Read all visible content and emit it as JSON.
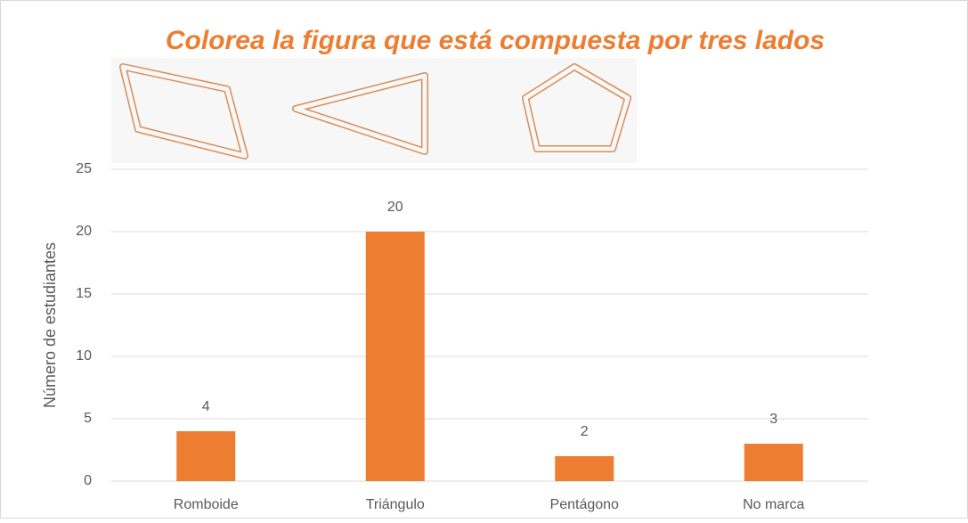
{
  "chart_data": {
    "type": "bar",
    "title": "Colorea la figura que está compuesta por tres lados",
    "y_label": "Número de estudiantes",
    "categories": [
      "Romboide",
      "Triángulo",
      "Pentágono",
      "No marca"
    ],
    "values": [
      4,
      20,
      2,
      3
    ],
    "color": "#ed7d31",
    "ylim": [
      0,
      25
    ],
    "yticks": [
      0,
      5,
      10,
      15,
      20,
      25
    ],
    "grid": true,
    "data_labels": true
  }
}
